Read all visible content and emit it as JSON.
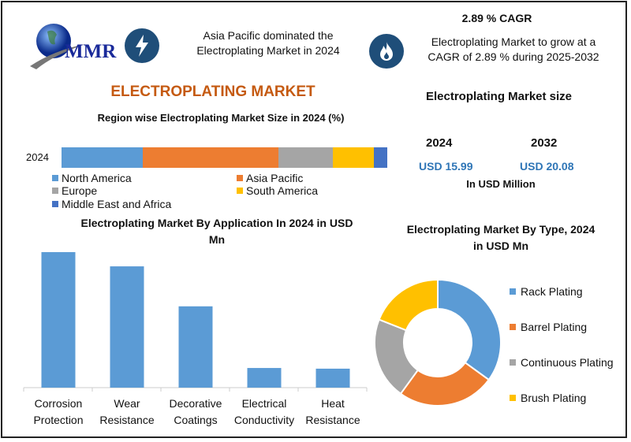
{
  "brand": {
    "logo_text": "MMR"
  },
  "header": {
    "region_note": "Asia Pacific dominated the Electroplating Market in 2024",
    "cagr_title": "2.89 % CAGR",
    "cagr_note": "Electroplating Market to grow at a CAGR of 2.89 % during 2025-2032"
  },
  "main_title": "ELECTROPLATING MARKET",
  "market_size": {
    "title": "Electroplating Market size",
    "years": [
      "2024",
      "2032"
    ],
    "values": [
      "USD 15.99",
      "USD 20.08"
    ],
    "unit": "In USD Million"
  },
  "colors": {
    "accent": "#c55a11",
    "icon_bg": "#1f4e79",
    "value_blue": "#2e75b6"
  },
  "chart_data": [
    {
      "type": "bar",
      "orientation": "horizontal-stacked",
      "title": "Region wise Electroplating Market Size in 2024 (%)",
      "categories": [
        "2024"
      ],
      "series": [
        {
          "name": "North America",
          "values": [
            25
          ],
          "color": "#5b9bd5"
        },
        {
          "name": "Asia Pacific",
          "values": [
            41.6
          ],
          "color": "#ed7d31"
        },
        {
          "name": "Europe",
          "values": [
            16.7
          ],
          "color": "#a5a5a5"
        },
        {
          "name": "South America",
          "values": [
            12.6
          ],
          "color": "#ffc000"
        },
        {
          "name": "Middle East and Africa",
          "values": [
            4.1
          ],
          "color": "#4472c4"
        }
      ],
      "legend": "bottom"
    },
    {
      "type": "bar",
      "title": "Electroplating Market By Application In 2024 in USD Mn",
      "categories": [
        "Corrosion Protection",
        "Wear Resistance",
        "Decorative Coatings",
        "Electrical Conductivity",
        "Heat Resistance"
      ],
      "values": [
        100,
        89.5,
        60,
        14.5,
        14
      ],
      "color": "#5b9bd5",
      "grid": false
    },
    {
      "type": "pie",
      "donut": true,
      "title": "Electroplating Market By Type, 2024 in USD Mn",
      "labels": [
        "Rack Plating",
        "Barrel Plating",
        "Continuous Plating",
        "Brush Plating"
      ],
      "values": [
        35,
        25,
        21,
        19
      ],
      "colors": [
        "#5b9bd5",
        "#ed7d31",
        "#a5a5a5",
        "#ffc000"
      ],
      "legend": "right"
    }
  ]
}
